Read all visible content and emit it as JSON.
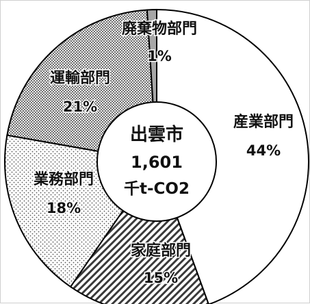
{
  "chart_data": {
    "type": "pie",
    "center_label": [
      "出雲市",
      "1,601",
      "千t-CO2"
    ],
    "slices": [
      {
        "label": "産業部門",
        "percent_label": "44%",
        "value": 44,
        "fill": "white"
      },
      {
        "label": "家庭部門",
        "percent_label": "15%",
        "value": 15,
        "fill": "diagonal-hatch"
      },
      {
        "label": "業務部門",
        "percent_label": "18%",
        "value": 18,
        "fill": "sparse-dots"
      },
      {
        "label": "運輸部門",
        "percent_label": "21%",
        "value": 21,
        "fill": "dense-dots"
      },
      {
        "label": "廃棄物部門",
        "percent_label": "1%",
        "value": 1,
        "fill": "solid-gray"
      }
    ],
    "colors": {
      "outline": "#000000",
      "waste": "#a6a6a6",
      "dots": "#444444",
      "hatch": "#3a3a3a",
      "background": "#ffffff"
    }
  }
}
